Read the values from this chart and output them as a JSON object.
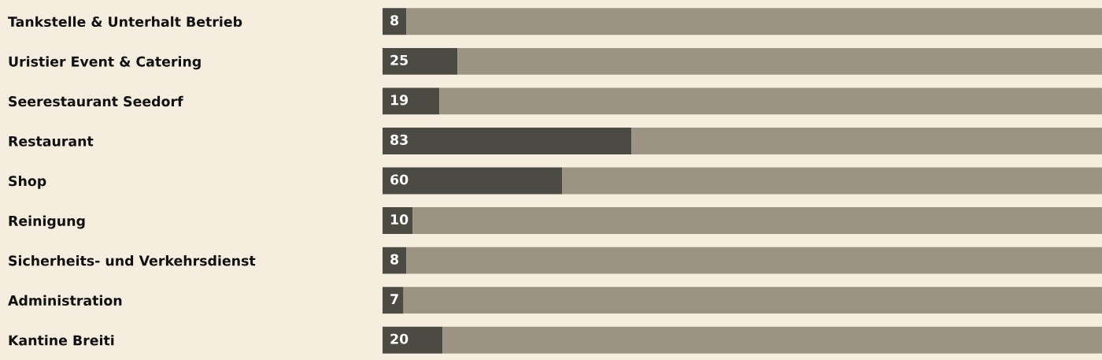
{
  "chart_data": {
    "type": "bar",
    "orientation": "horizontal",
    "stacked": true,
    "categories": [
      "Tankstelle & Unterhalt Betrieb",
      "Uristier Event & Catering",
      "Seerestaurant Seedorf",
      "Restaurant",
      "Shop",
      "Reinigung",
      "Sicherheits- und Verkehrsdienst",
      "Administration",
      "Kantine Breiti"
    ],
    "series": [
      {
        "color": "#4b4a43",
        "values": [
          8,
          25,
          19,
          83,
          60,
          10,
          8,
          7,
          20
        ],
        "value_labels": [
          "8",
          "25",
          "19",
          "83",
          "60",
          "10",
          "8",
          "7",
          "20"
        ]
      },
      {
        "color": "#9b9483",
        "values": [
          232,
          215,
          221,
          157,
          180,
          230,
          232,
          233,
          220
        ]
      }
    ],
    "xlim": [
      0,
      240
    ],
    "tick_labels": "y"
  }
}
